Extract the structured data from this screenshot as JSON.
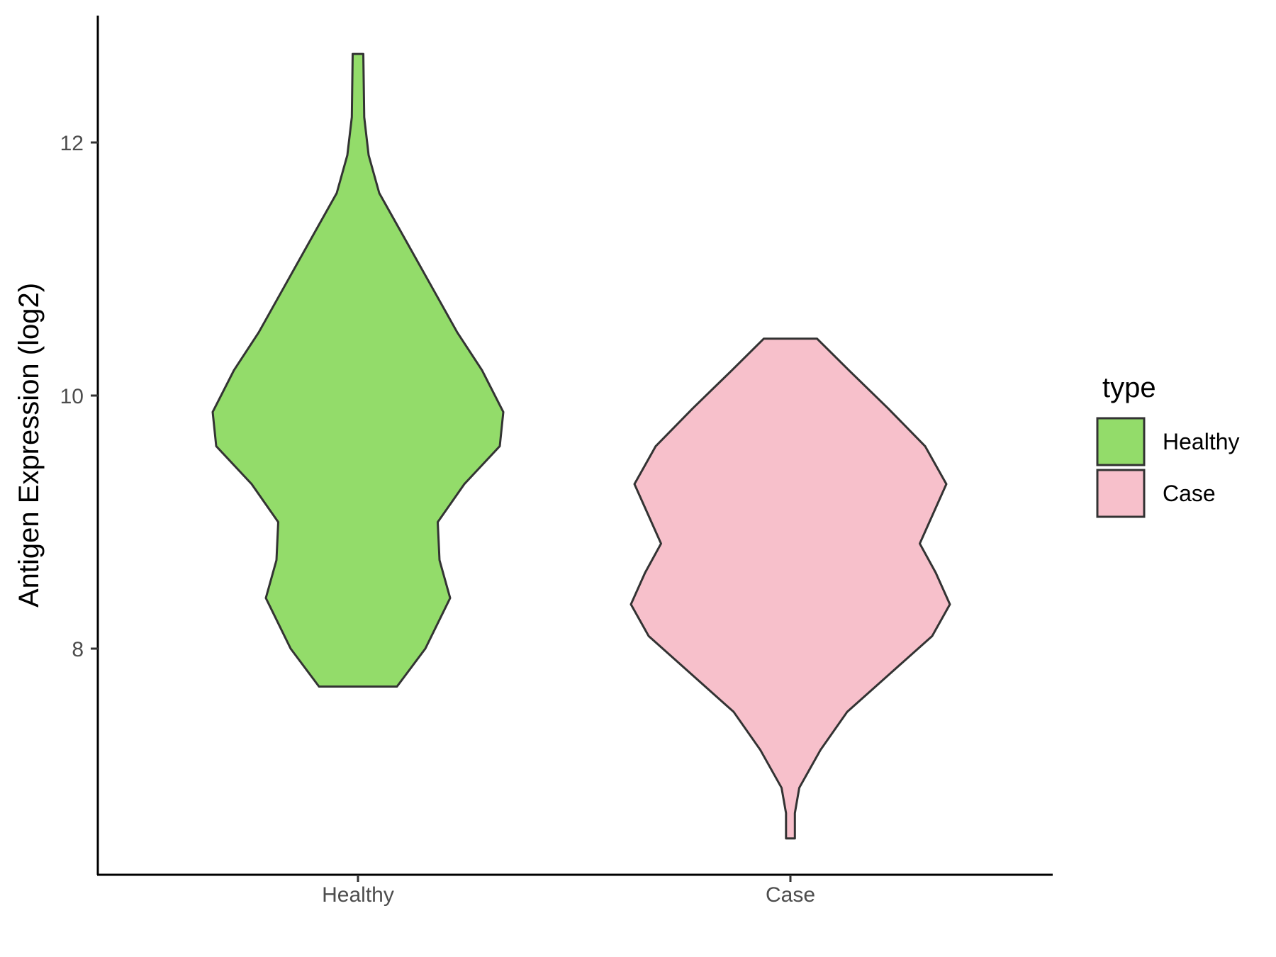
{
  "chart_data": {
    "type": "violin",
    "ylabel": "Antigen Expression (log2)",
    "xlabel": "",
    "categories": [
      "Healthy",
      "Case"
    ],
    "y_ticks": [
      8,
      10,
      12
    ],
    "ylim": [
      6.25,
      13.05
    ],
    "grid": false,
    "legend": {
      "title": "type",
      "position": "right",
      "entries": [
        {
          "label": "Healthy",
          "color": "#93dc6a"
        },
        {
          "label": "Case",
          "color": "#f7c0cb"
        }
      ]
    },
    "series": [
      {
        "name": "Healthy",
        "color": "#93dc6a",
        "min": 7.7,
        "max": 12.7,
        "density_profile": [
          [
            7.7,
            0.22
          ],
          [
            8.0,
            0.38
          ],
          [
            8.4,
            0.52
          ],
          [
            8.7,
            0.46
          ],
          [
            9.0,
            0.45
          ],
          [
            9.3,
            0.6
          ],
          [
            9.6,
            0.8
          ],
          [
            9.87,
            0.82
          ],
          [
            10.2,
            0.7
          ],
          [
            10.5,
            0.56
          ],
          [
            10.9,
            0.4
          ],
          [
            11.3,
            0.24
          ],
          [
            11.6,
            0.12
          ],
          [
            11.9,
            0.06
          ],
          [
            12.2,
            0.035
          ],
          [
            12.7,
            0.03
          ]
        ]
      },
      {
        "name": "Case",
        "color": "#f7c0cb",
        "min": 6.5,
        "max": 10.45,
        "density_profile": [
          [
            6.5,
            0.025
          ],
          [
            6.7,
            0.025
          ],
          [
            6.9,
            0.05
          ],
          [
            7.2,
            0.17
          ],
          [
            7.5,
            0.32
          ],
          [
            7.8,
            0.56
          ],
          [
            8.1,
            0.8
          ],
          [
            8.35,
            0.9
          ],
          [
            8.6,
            0.82
          ],
          [
            8.83,
            0.73
          ],
          [
            9.05,
            0.8
          ],
          [
            9.3,
            0.88
          ],
          [
            9.6,
            0.76
          ],
          [
            9.9,
            0.55
          ],
          [
            10.2,
            0.33
          ],
          [
            10.45,
            0.15
          ]
        ]
      }
    ]
  }
}
